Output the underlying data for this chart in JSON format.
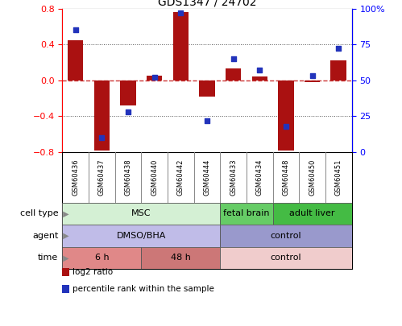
{
  "title": "GDS1347 / 24702",
  "samples": [
    "GSM60436",
    "GSM60437",
    "GSM60438",
    "GSM60440",
    "GSM60442",
    "GSM60444",
    "GSM60433",
    "GSM60434",
    "GSM60448",
    "GSM60450",
    "GSM60451"
  ],
  "log2_ratio": [
    0.45,
    -0.78,
    -0.28,
    0.05,
    0.76,
    -0.18,
    0.13,
    0.04,
    -0.78,
    -0.02,
    0.22
  ],
  "percentile_rank": [
    85,
    10,
    28,
    52,
    97,
    22,
    65,
    57,
    18,
    53,
    72
  ],
  "ylim": [
    -0.8,
    0.8
  ],
  "y2lim": [
    0,
    100
  ],
  "yticks": [
    -0.8,
    -0.4,
    0.0,
    0.4,
    0.8
  ],
  "y2ticks": [
    0,
    25,
    50,
    75,
    100
  ],
  "y2ticklabels": [
    "0",
    "25",
    "50",
    "75",
    "100%"
  ],
  "bar_color": "#aa1111",
  "dot_color": "#2233bb",
  "zero_line_color": "#cc3333",
  "cell_type_groups": [
    {
      "label": "MSC",
      "start": 0,
      "end": 6,
      "color": "#d4f0d4"
    },
    {
      "label": "fetal brain",
      "start": 6,
      "end": 8,
      "color": "#66cc66"
    },
    {
      "label": "adult liver",
      "start": 8,
      "end": 11,
      "color": "#44bb44"
    }
  ],
  "agent_groups": [
    {
      "label": "DMSO/BHA",
      "start": 0,
      "end": 6,
      "color": "#c0bce8"
    },
    {
      "label": "control",
      "start": 6,
      "end": 11,
      "color": "#9999cc"
    }
  ],
  "time_groups": [
    {
      "label": "6 h",
      "start": 0,
      "end": 3,
      "color": "#e08888"
    },
    {
      "label": "48 h",
      "start": 3,
      "end": 6,
      "color": "#cc7777"
    },
    {
      "label": "control",
      "start": 6,
      "end": 11,
      "color": "#f0cccc"
    }
  ],
  "row_labels": [
    "cell type",
    "agent",
    "time"
  ],
  "legend_items": [
    {
      "label": "log2 ratio",
      "color": "#aa1111"
    },
    {
      "label": "percentile rank within the sample",
      "color": "#2233bb"
    }
  ],
  "dotted_line_color": "#555555",
  "background_color": "#ffffff",
  "border_color": "#000000",
  "sample_bg_color": "#cccccc"
}
